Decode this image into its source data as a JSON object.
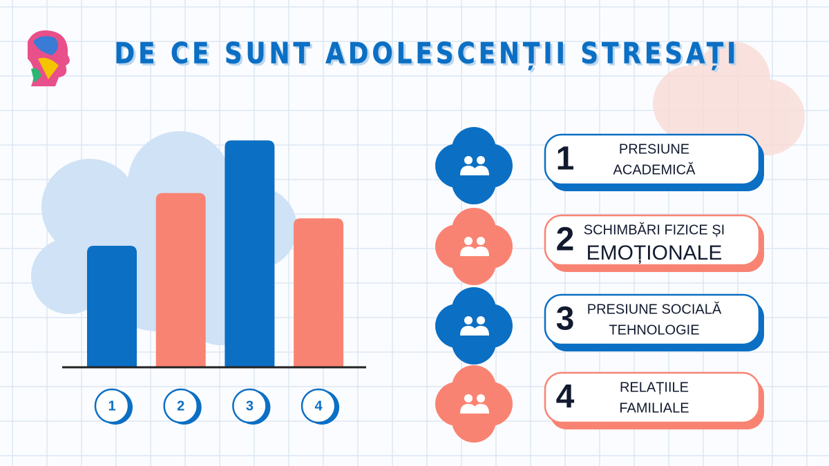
{
  "header": {
    "title": "DE CE SUNT ADOLESCENȚII STRESAȚI"
  },
  "chart_data": {
    "type": "bar",
    "categories": [
      "1",
      "2",
      "3",
      "4"
    ],
    "values": [
      53,
      76,
      99,
      65
    ],
    "colors": [
      "#0b6fc4",
      "#f98372",
      "#0b6fc4",
      "#f98372"
    ],
    "ylim": [
      0,
      100
    ]
  },
  "items": [
    {
      "number": "1",
      "lines": [
        "PRESIUNE",
        "ACADEMICĂ"
      ],
      "color": "#0b6fc4"
    },
    {
      "number": "2",
      "lines": [
        "SCHIMBĂRI FIZICE ȘI",
        "EMOȚIONALE"
      ],
      "color": "#f98372"
    },
    {
      "number": "3",
      "lines": [
        "PRESIUNE SOCIALĂ",
        "TEHNOLOGIE"
      ],
      "color": "#0b6fc4"
    },
    {
      "number": "4",
      "lines": [
        "RELAȚIILE",
        "FAMILIALE"
      ],
      "color": "#f98372"
    }
  ]
}
